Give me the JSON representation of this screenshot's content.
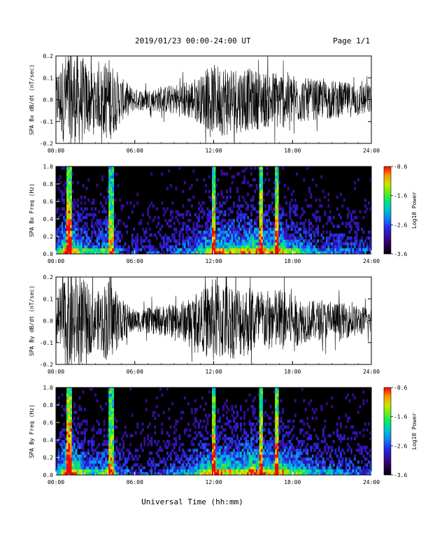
{
  "header": {
    "title": "2019/01/23  00:00-24:00 UT",
    "page": "Page 1/1"
  },
  "footer": {
    "xlabel": "Universal Time (hh:mm)"
  },
  "chart_data": [
    {
      "type": "line",
      "ylabel": "SPA Bx dB/dt (nT/sec)",
      "x_range_hours": [
        0,
        24
      ],
      "xticks": [
        "00:00",
        "06:00",
        "12:00",
        "18:00",
        "24:00"
      ],
      "ylim": [
        -0.2,
        0.2
      ],
      "yticks": [
        "-0.2",
        "-0.1",
        "0.0",
        "0.1",
        "0.2"
      ],
      "envelope_hours": [
        0,
        1,
        2,
        3,
        4,
        5,
        6,
        7,
        8,
        9,
        10,
        11,
        12,
        13,
        14,
        15,
        16,
        17,
        18,
        19,
        20,
        21,
        22,
        23,
        24
      ],
      "envelope_amplitude": [
        0.12,
        0.25,
        0.2,
        0.12,
        0.2,
        0.1,
        0.05,
        0.05,
        0.06,
        0.07,
        0.09,
        0.11,
        0.16,
        0.17,
        0.15,
        0.14,
        0.13,
        0.14,
        0.12,
        0.1,
        0.09,
        0.09,
        0.08,
        0.08,
        0.07
      ],
      "color": "#000000"
    },
    {
      "type": "heatmap",
      "ylabel": "SPA Bx Freq (Hz)",
      "x_range_hours": [
        0,
        24
      ],
      "xticks": [
        "00:00",
        "06:00",
        "12:00",
        "18:00",
        "24:00"
      ],
      "ylim": [
        0,
        1
      ],
      "yticks": [
        "0.0",
        "0.2",
        "0.4",
        "0.6",
        "0.8",
        "1.0"
      ],
      "colorbar": {
        "label": "Log10 Power",
        "ticks": [
          "-0.6",
          "-1.6",
          "-2.6",
          "-3.6"
        ],
        "range": [
          -3.6,
          -0.6
        ]
      },
      "activity_hours": [
        0,
        1,
        2,
        3,
        4,
        5,
        6,
        7,
        8,
        9,
        10,
        11,
        12,
        13,
        14,
        15,
        16,
        17,
        18,
        19,
        20,
        21,
        22,
        23,
        24
      ],
      "activity_level": [
        0.4,
        0.9,
        0.55,
        0.4,
        0.6,
        0.25,
        0.2,
        0.2,
        0.25,
        0.3,
        0.35,
        0.5,
        0.75,
        0.7,
        0.65,
        0.8,
        0.7,
        0.75,
        0.6,
        0.45,
        0.35,
        0.35,
        0.3,
        0.3,
        0.25
      ]
    },
    {
      "type": "line",
      "ylabel": "SPA By dB/dt (nT/sec)",
      "x_range_hours": [
        0,
        24
      ],
      "xticks": [
        "00:00",
        "06:00",
        "12:00",
        "18:00",
        "24:00"
      ],
      "ylim": [
        -0.2,
        0.2
      ],
      "yticks": [
        "-0.2",
        "-0.1",
        "0.0",
        "0.1",
        "0.2"
      ],
      "envelope_hours": [
        0,
        1,
        2,
        3,
        4,
        5,
        6,
        7,
        8,
        9,
        10,
        11,
        12,
        13,
        14,
        15,
        16,
        17,
        18,
        19,
        20,
        21,
        22,
        23,
        24
      ],
      "envelope_amplitude": [
        0.12,
        0.25,
        0.2,
        0.12,
        0.2,
        0.1,
        0.05,
        0.06,
        0.07,
        0.08,
        0.1,
        0.13,
        0.2,
        0.18,
        0.17,
        0.16,
        0.14,
        0.15,
        0.12,
        0.1,
        0.09,
        0.09,
        0.08,
        0.07,
        0.06
      ],
      "color": "#000000"
    },
    {
      "type": "heatmap",
      "ylabel": "SPA By Freq (Hz)",
      "x_range_hours": [
        0,
        24
      ],
      "xticks": [
        "00:00",
        "06:00",
        "12:00",
        "18:00",
        "24:00"
      ],
      "ylim": [
        0,
        1
      ],
      "yticks": [
        "0.0",
        "0.2",
        "0.4",
        "0.6",
        "0.8",
        "1.0"
      ],
      "colorbar": {
        "label": "Log10 Power",
        "ticks": [
          "-0.6",
          "-1.6",
          "-2.6",
          "-3.6"
        ],
        "range": [
          -3.6,
          -0.6
        ]
      },
      "activity_hours": [
        0,
        1,
        2,
        3,
        4,
        5,
        6,
        7,
        8,
        9,
        10,
        11,
        12,
        13,
        14,
        15,
        16,
        17,
        18,
        19,
        20,
        21,
        22,
        23,
        24
      ],
      "activity_level": [
        0.45,
        0.95,
        0.6,
        0.45,
        0.65,
        0.3,
        0.22,
        0.22,
        0.28,
        0.32,
        0.38,
        0.55,
        0.8,
        0.72,
        0.68,
        0.85,
        0.72,
        0.78,
        0.62,
        0.5,
        0.4,
        0.38,
        0.33,
        0.3,
        0.28
      ]
    }
  ]
}
